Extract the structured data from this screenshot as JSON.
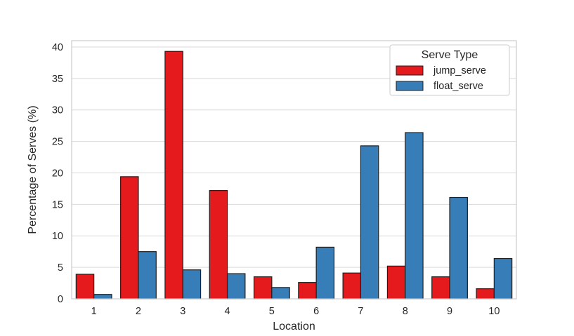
{
  "chart_data": {
    "type": "bar",
    "xlabel": "Location",
    "ylabel": "Percentage of Serves (%)",
    "ylim": [
      0,
      41
    ],
    "yticks": [
      0,
      5,
      10,
      15,
      20,
      25,
      30,
      35,
      40
    ],
    "grid": "horizontal",
    "legend": {
      "title": "Serve Type",
      "placement": "top-right"
    },
    "categories": [
      "1",
      "2",
      "3",
      "4",
      "5",
      "6",
      "7",
      "8",
      "9",
      "10"
    ],
    "series": [
      {
        "name": "jump_serve",
        "color": "#e41a1c",
        "values": [
          3.9,
          19.4,
          39.3,
          17.2,
          3.5,
          2.6,
          4.1,
          5.2,
          3.5,
          1.6
        ]
      },
      {
        "name": "float_serve",
        "color": "#377eb8",
        "values": [
          0.7,
          7.5,
          4.6,
          4.0,
          1.8,
          8.2,
          24.3,
          26.4,
          16.1,
          6.4
        ]
      }
    ]
  }
}
